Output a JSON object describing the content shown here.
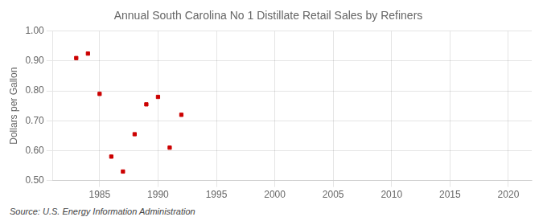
{
  "chart_data": {
    "type": "scatter",
    "title": "Annual South Carolina No 1 Distillate Retail Sales by Refiners",
    "ylabel": "Dollars per Gallon",
    "annotations": [
      "Source: U.S. Energy Information Administration"
    ],
    "x": [
      1983,
      1984,
      1985,
      1986,
      1987,
      1988,
      1989,
      1990,
      1991,
      1992
    ],
    "values": [
      0.91,
      0.925,
      0.79,
      0.58,
      0.53,
      0.655,
      0.755,
      0.78,
      0.61,
      0.72
    ],
    "color": "#cc0000",
    "marker": "square",
    "xlim": [
      1981,
      2022
    ],
    "ylim": [
      0.5,
      1.0
    ],
    "xticks": [
      1985,
      1990,
      1995,
      2000,
      2005,
      2010,
      2015,
      2020
    ],
    "yticks": [
      {
        "value": 0.5,
        "label": "0.50"
      },
      {
        "value": 0.6,
        "label": "0.60"
      },
      {
        "value": 0.7,
        "label": "0.70"
      },
      {
        "value": 0.8,
        "label": "0.80"
      },
      {
        "value": 0.9,
        "label": "0.90"
      },
      {
        "value": 1.0,
        "label": "1.00"
      }
    ],
    "grid": true
  }
}
